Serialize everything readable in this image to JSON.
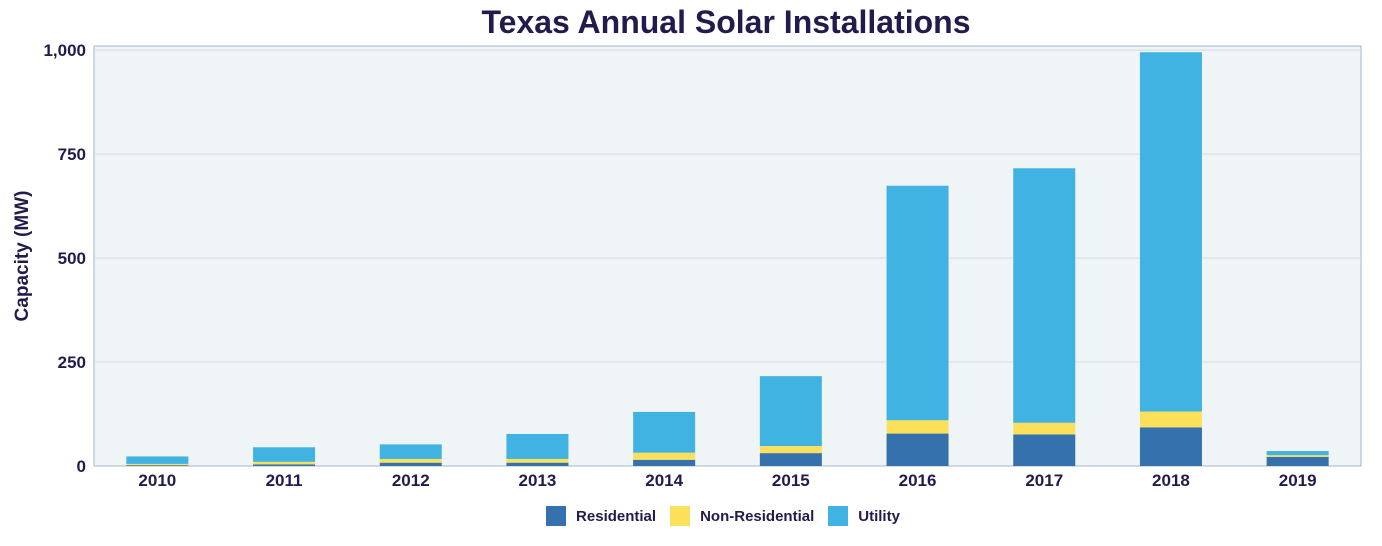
{
  "chart_data": {
    "type": "bar",
    "stacked": true,
    "title": "Texas Annual Solar Installations",
    "xlabel": "",
    "ylabel": "Capacity (MW)",
    "ylim": [
      0,
      1010
    ],
    "yticks": [
      0,
      250,
      500,
      750,
      1000
    ],
    "ytick_labels": [
      "0",
      "250",
      "500",
      "750",
      "1,000"
    ],
    "grid": true,
    "legend_position": "bottom-center",
    "categories": [
      "2010",
      "2011",
      "2012",
      "2013",
      "2014",
      "2015",
      "2016",
      "2017",
      "2018",
      "2019"
    ],
    "series": [
      {
        "name": "Residential",
        "color": "#3571ad",
        "values": [
          2,
          4,
          8,
          8,
          15,
          31,
          78,
          76,
          93,
          22
        ]
      },
      {
        "name": "Non-Residential",
        "color": "#fde05a",
        "values": [
          3,
          6,
          9,
          9,
          17,
          17,
          32,
          28,
          38,
          4
        ]
      },
      {
        "name": "Utility",
        "color": "#41b3e2",
        "values": [
          18,
          35,
          35,
          60,
          98,
          168,
          564,
          612,
          864,
          10
        ]
      }
    ]
  }
}
